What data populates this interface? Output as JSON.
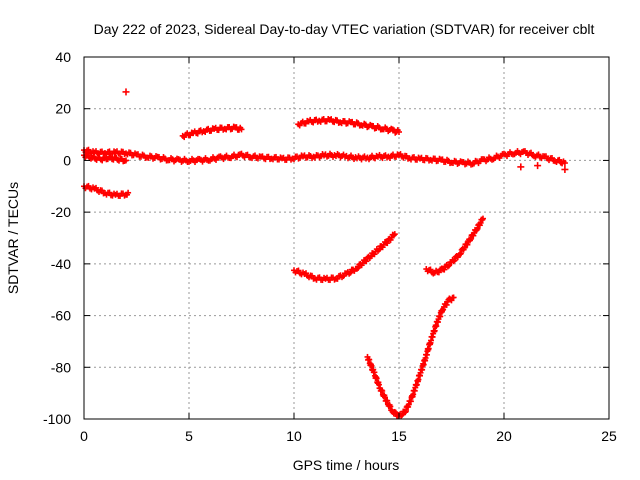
{
  "chart_data": {
    "type": "scatter",
    "title": "Day 222 of 2023, Sidereal Day-to-day VTEC variation (SDTVAR) for receiver cblt",
    "xlabel": "GPS time / hours",
    "ylabel": "SDTVAR / TECUs",
    "xlim": [
      0,
      25
    ],
    "ylim": [
      -100,
      40
    ],
    "xticks": [
      0,
      5,
      10,
      15,
      20,
      25
    ],
    "yticks": [
      -100,
      -80,
      -60,
      -40,
      -20,
      0,
      20,
      40
    ],
    "grid": true,
    "marker": "+",
    "color": "#ff0000",
    "tracks": [
      {
        "x": [
          0,
          0.5,
          1,
          1.5,
          2,
          2.5,
          3,
          3.5,
          4,
          4.5,
          5,
          5.5,
          6,
          6.5,
          7,
          7.5,
          8,
          8.5,
          9,
          9.5,
          10,
          10.5,
          11,
          11.5,
          12,
          12.5,
          13,
          13.5,
          14,
          14.5,
          15,
          15.5,
          16,
          16.5,
          17,
          17.5,
          18,
          18.5,
          19,
          19.5,
          20,
          20.5,
          21,
          21.5,
          22,
          22.5,
          22.9
        ],
        "y": [
          4,
          3,
          3,
          3,
          3,
          2,
          1.5,
          1,
          0.5,
          0,
          0,
          0,
          0.5,
          1,
          1.5,
          2,
          1.5,
          1,
          1,
          0.5,
          1,
          1.5,
          1.5,
          2,
          2,
          1.5,
          1,
          1,
          1.5,
          1.5,
          2,
          1,
          0.5,
          0.5,
          0,
          -0.5,
          -1,
          -1,
          0,
          1,
          2,
          3,
          3,
          2,
          1,
          0,
          -1
        ]
      },
      {
        "x": [
          0,
          0.4,
          0.8,
          1.2,
          1.6,
          2.0
        ],
        "y": [
          2,
          1,
          0.5,
          1,
          0.5,
          0
        ]
      },
      {
        "x": [
          0,
          0.5,
          1,
          1.5,
          2,
          2.1
        ],
        "y": [
          -10,
          -11,
          -12.5,
          -13.5,
          -13,
          -12.5
        ]
      },
      {
        "x": [
          4.7,
          5.2,
          5.7,
          6.2,
          6.7,
          7.2,
          7.5
        ],
        "y": [
          9.5,
          10.5,
          11.5,
          12,
          12.5,
          12.5,
          12
        ]
      },
      {
        "x": [
          10.2,
          10.7,
          11.2,
          11.7,
          12.2,
          12.7,
          13.2,
          13.7,
          14.2,
          14.7,
          15
        ],
        "y": [
          14,
          15,
          15.5,
          15.5,
          15,
          14.5,
          14,
          13,
          12.5,
          11.5,
          11
        ]
      },
      {
        "x": [
          10,
          10.5,
          11,
          11.5,
          12,
          12.5,
          13,
          13.5,
          14,
          14.5,
          14.8
        ],
        "y": [
          -42.5,
          -44,
          -45.5,
          -46,
          -45.5,
          -44,
          -41.5,
          -38,
          -34.5,
          -31,
          -28.5
        ]
      },
      {
        "x": [
          13.5,
          13.8,
          14.1,
          14.4,
          14.7,
          15,
          15.3,
          15.6,
          15.9,
          16.2,
          16.5,
          16.8,
          17.1,
          17.4,
          17.6
        ],
        "y": [
          -76,
          -82,
          -88,
          -93,
          -97,
          -99,
          -97,
          -92,
          -85,
          -78,
          -70,
          -63,
          -57,
          -54,
          -53
        ]
      },
      {
        "x": [
          16.3,
          16.7,
          17.1,
          17.5,
          17.9,
          18.3,
          18.7,
          19
        ],
        "y": [
          -42,
          -43.5,
          -42,
          -39.5,
          -36,
          -31.5,
          -26.5,
          -22.5
        ]
      }
    ],
    "outliers": [
      {
        "x": 2.0,
        "y": 26.5
      },
      {
        "x": 22.9,
        "y": -3.5
      },
      {
        "x": 20.8,
        "y": -2.5
      },
      {
        "x": 21.6,
        "y": -2
      }
    ]
  }
}
